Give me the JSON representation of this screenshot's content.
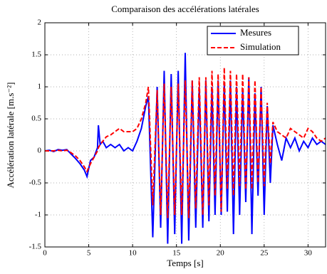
{
  "chart_data": {
    "type": "line",
    "title": "Comparaison des accélérations latérales",
    "x_label": "Temps [s]",
    "y_label": "Accélération latérale [m.s⁻²]",
    "x": [
      0,
      0.5,
      1,
      1.5,
      2,
      2.5,
      3,
      3.5,
      4,
      4.5,
      4.8,
      5.2,
      5.6,
      6,
      6.1,
      6.3,
      6.6,
      7,
      7.5,
      8,
      8.5,
      9,
      9.5,
      10,
      10.5,
      11,
      11.5,
      11.8,
      12.3,
      12.8,
      13.2,
      13.6,
      14.0,
      14.4,
      14.8,
      15.2,
      15.6,
      16.0,
      16.4,
      16.8,
      17.2,
      17.6,
      18.0,
      18.35,
      18.7,
      19.05,
      19.4,
      19.75,
      20.1,
      20.45,
      20.8,
      21.15,
      21.5,
      21.85,
      22.2,
      22.55,
      22.9,
      23.25,
      23.6,
      23.95,
      24.3,
      24.65,
      25.0,
      25.35,
      25.7,
      26.0,
      26.5,
      27,
      27.5,
      28,
      28.5,
      29,
      29.5,
      30,
      30.5,
      31,
      31.5,
      32
    ],
    "series": [
      {
        "name": "Mesures",
        "color": "#0000ff",
        "dashed": false,
        "values": [
          0,
          0.01,
          -0.01,
          0.02,
          0.01,
          0.02,
          -0.05,
          -0.12,
          -0.2,
          -0.3,
          -0.4,
          -0.15,
          -0.1,
          0.05,
          0.4,
          0.1,
          0.15,
          0.05,
          0.1,
          0.05,
          0.1,
          0.0,
          0.05,
          0.0,
          0.15,
          0.35,
          0.7,
          0.85,
          -1.35,
          1.0,
          -1.2,
          1.25,
          -1.45,
          1.2,
          -1.3,
          1.25,
          -1.45,
          1.53,
          -1.4,
          1.1,
          -1.2,
          1.0,
          -1.2,
          1.1,
          -1.1,
          1.0,
          -1.0,
          1.1,
          -1.0,
          1.05,
          -0.95,
          1.1,
          -1.3,
          1.0,
          -1.0,
          0.95,
          -0.8,
          1.15,
          -1.3,
          0.9,
          -0.7,
          1.0,
          -1.0,
          0.7,
          -0.5,
          0.4,
          0.1,
          -0.15,
          0.2,
          0.05,
          0.2,
          0.0,
          0.15,
          0.05,
          0.2,
          0.1,
          0.15,
          0.1
        ]
      },
      {
        "name": "Simulation",
        "color": "#ff0000",
        "dashed": true,
        "values": [
          0,
          0,
          0,
          0.01,
          0,
          0.01,
          -0.03,
          -0.08,
          -0.15,
          -0.25,
          -0.32,
          -0.2,
          -0.1,
          0.0,
          0.05,
          0.1,
          0.15,
          0.22,
          0.25,
          0.3,
          0.35,
          0.3,
          0.3,
          0.3,
          0.35,
          0.5,
          0.75,
          1.0,
          -0.85,
          0.95,
          -1.0,
          1.05,
          -1.05,
          1.0,
          -1.0,
          1.05,
          -1.0,
          1.1,
          -1.05,
          1.1,
          -0.9,
          1.15,
          -1.0,
          1.15,
          -0.85,
          1.25,
          -0.7,
          1.2,
          -0.95,
          1.3,
          -0.6,
          1.25,
          -0.7,
          1.2,
          -0.55,
          1.2,
          -0.6,
          1.15,
          -0.6,
          1.1,
          -0.5,
          1.0,
          -0.55,
          0.75,
          -0.2,
          0.45,
          0.3,
          0.25,
          0.2,
          0.35,
          0.3,
          0.25,
          0.2,
          0.35,
          0.3,
          0.2,
          0.15,
          0.2
        ]
      }
    ],
    "xlim": [
      0,
      32
    ],
    "ylim": [
      -1.5,
      2
    ],
    "xticks": [
      0,
      5,
      10,
      15,
      20,
      25,
      30
    ],
    "yticks": [
      -1.5,
      -1,
      -0.5,
      0,
      0.5,
      1,
      1.5,
      2
    ],
    "grid": true,
    "legend_location": "upper right"
  }
}
